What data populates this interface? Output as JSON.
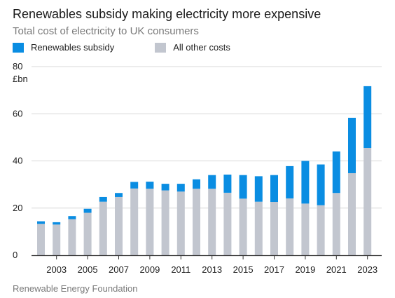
{
  "header": {
    "title": "Renewables subsidy making electricity more expensive",
    "subtitle": "Total cost of electricity to UK consumers"
  },
  "footer": {
    "source": "Renewable Energy Foundation"
  },
  "colors": {
    "subsidy": "#0a8de2",
    "other": "#c2c6cf",
    "axis": "#333333",
    "grid": "#d8d8d8"
  },
  "chart_data": {
    "type": "bar",
    "stacked": true,
    "unit_label": "£bn",
    "ylim": [
      0,
      80
    ],
    "yticks": [
      0,
      20,
      40,
      60,
      80
    ],
    "grid": true,
    "legend_position": "top-left",
    "categories": [
      "2002",
      "2003",
      "2004",
      "2005",
      "2006",
      "2007",
      "2008",
      "2009",
      "2010",
      "2011",
      "2012",
      "2013",
      "2014",
      "2015",
      "2016",
      "2017",
      "2018",
      "2019",
      "2020",
      "2021",
      "2022",
      "2023"
    ],
    "xtick_labels": [
      "2003",
      "2005",
      "2007",
      "2009",
      "2011",
      "2013",
      "2015",
      "2017",
      "2019",
      "2021",
      "2023"
    ],
    "series": [
      {
        "name": "All other costs",
        "values": [
          13.3,
          13.0,
          15.3,
          18.0,
          22.7,
          24.7,
          28.3,
          28.2,
          27.5,
          27.0,
          28.2,
          28.2,
          26.5,
          24.0,
          22.7,
          22.6,
          24.1,
          21.9,
          21.2,
          26.4,
          34.8,
          45.5
        ]
      },
      {
        "name": "Renewables subsidy",
        "values": [
          1.1,
          1.0,
          1.3,
          1.7,
          2.0,
          1.7,
          2.8,
          3.0,
          2.8,
          3.3,
          4.0,
          5.8,
          7.7,
          10.0,
          10.8,
          11.4,
          13.7,
          18.1,
          17.3,
          17.6,
          23.5,
          26.2
        ]
      }
    ]
  }
}
